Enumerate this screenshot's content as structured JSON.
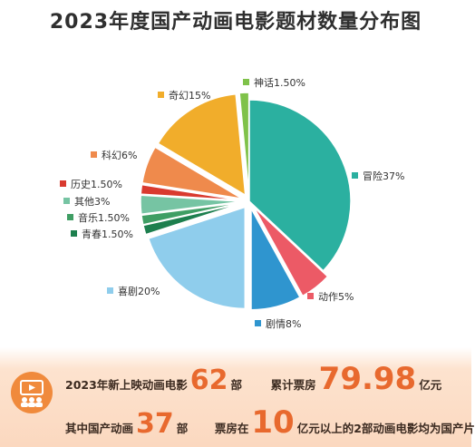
{
  "title": "2023年度国产动画电影题材数量分布图",
  "chart_data": {
    "type": "pie",
    "start_angle_deg": 0,
    "direction": "clockwise",
    "slices": [
      {
        "label": "冒险37%",
        "value": 37,
        "color": "#2bb0a0"
      },
      {
        "label": "动作5%",
        "value": 5,
        "color": "#ec5a66"
      },
      {
        "label": "剧情8%",
        "value": 8,
        "color": "#2f95cf"
      },
      {
        "label": "喜剧20%",
        "value": 20,
        "color": "#8fcdec"
      },
      {
        "label": "青春1.50%",
        "value": 1.5,
        "color": "#1d7f4e"
      },
      {
        "label": "音乐1.50%",
        "value": 1.5,
        "color": "#3f9e64"
      },
      {
        "label": "其他3%",
        "value": 3,
        "color": "#76c4a3"
      },
      {
        "label": "历史1.50%",
        "value": 1.5,
        "color": "#d93a2f"
      },
      {
        "label": "科幻6%",
        "value": 6,
        "color": "#ef8a4c"
      },
      {
        "label": "奇幻15%",
        "value": 15,
        "color": "#f1ad2b"
      },
      {
        "label": "神话1.50%",
        "value": 1.5,
        "color": "#7fc24a"
      }
    ]
  },
  "stats": {
    "line1_pre": "2023年新上映动画电影",
    "line1_num": "62",
    "line1_unit": "部",
    "line1_mid": "累计票房",
    "line1_num2": "79.98",
    "line1_unit2": "亿元",
    "line2_pre": "其中国产动画",
    "line2_num": "37",
    "line2_unit": "部",
    "line2_mid": "票房在",
    "line2_num2": "10",
    "line2_post": "亿元以上的2部动画电影均为国产片"
  }
}
